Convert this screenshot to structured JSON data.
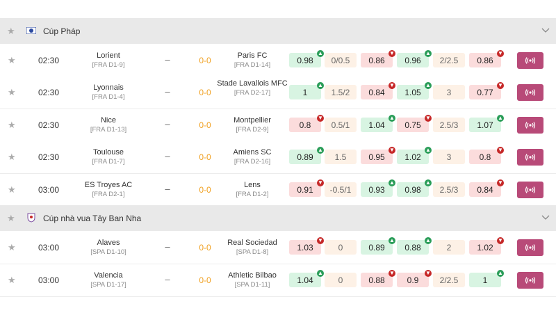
{
  "colors": {
    "up": "#d8f4e2",
    "down": "#fbdcdc",
    "handicap": "#fdf1e6",
    "score": "#f0a020",
    "live_button": "#b84a78",
    "header_bg": "#e9e9e9"
  },
  "icons": {
    "star": "star-icon",
    "chevron": "chevron-down-icon",
    "live": "live-broadcast-icon",
    "trend_up": "arrow-up-icon",
    "trend_down": "arrow-down-icon"
  },
  "leagues": [
    {
      "name": "Cúp Pháp",
      "matches": [
        {
          "time": "02:30",
          "home": "Lorient",
          "home_rank": "[FRA D1-9]",
          "score": "0-0",
          "away": "Paris FC",
          "away_rank": "[FRA D1-14]",
          "odds": [
            {
              "v": "0.98",
              "s": "up"
            },
            {
              "v": "0/0.5",
              "s": "hcp"
            },
            {
              "v": "0.86",
              "s": "down"
            },
            {
              "v": "0.96",
              "s": "up"
            },
            {
              "v": "2/2.5",
              "s": "hcp"
            },
            {
              "v": "0.86",
              "s": "down"
            }
          ]
        },
        {
          "time": "02:30",
          "home": "Lyonnais",
          "home_rank": "[FRA D1-4]",
          "score": "0-0",
          "away": "Stade Lavallois MFC",
          "away_rank": "[FRA D2-17]",
          "odds": [
            {
              "v": "1",
              "s": "up"
            },
            {
              "v": "1.5/2",
              "s": "hcp"
            },
            {
              "v": "0.84",
              "s": "down"
            },
            {
              "v": "1.05",
              "s": "up"
            },
            {
              "v": "3",
              "s": "hcp"
            },
            {
              "v": "0.77",
              "s": "down"
            }
          ]
        },
        {
          "time": "02:30",
          "home": "Nice",
          "home_rank": "[FRA D1-13]",
          "score": "0-0",
          "away": "Montpellier",
          "away_rank": "[FRA D2-9]",
          "odds": [
            {
              "v": "0.8",
              "s": "down"
            },
            {
              "v": "0.5/1",
              "s": "hcp"
            },
            {
              "v": "1.04",
              "s": "up"
            },
            {
              "v": "0.75",
              "s": "down"
            },
            {
              "v": "2.5/3",
              "s": "hcp"
            },
            {
              "v": "1.07",
              "s": "up"
            }
          ]
        },
        {
          "time": "02:30",
          "home": "Toulouse",
          "home_rank": "[FRA D1-7]",
          "score": "0-0",
          "away": "Amiens SC",
          "away_rank": "[FRA D2-16]",
          "odds": [
            {
              "v": "0.89",
              "s": "up"
            },
            {
              "v": "1.5",
              "s": "hcp"
            },
            {
              "v": "0.95",
              "s": "down"
            },
            {
              "v": "1.02",
              "s": "up"
            },
            {
              "v": "3",
              "s": "hcp"
            },
            {
              "v": "0.8",
              "s": "down"
            }
          ]
        },
        {
          "time": "03:00",
          "home": "ES Troyes AC",
          "home_rank": "[FRA D2-1]",
          "score": "0-0",
          "away": "Lens",
          "away_rank": "[FRA D1-2]",
          "odds": [
            {
              "v": "0.91",
              "s": "down"
            },
            {
              "v": "-0.5/1",
              "s": "hcp"
            },
            {
              "v": "0.93",
              "s": "up"
            },
            {
              "v": "0.98",
              "s": "up"
            },
            {
              "v": "2.5/3",
              "s": "hcp"
            },
            {
              "v": "0.84",
              "s": "down"
            }
          ]
        }
      ]
    },
    {
      "name": "Cúp nhà vua Tây Ban Nha",
      "matches": [
        {
          "time": "03:00",
          "home": "Alaves",
          "home_rank": "[SPA D1-10]",
          "score": "0-0",
          "away": "Real Sociedad",
          "away_rank": "[SPA D1-8]",
          "odds": [
            {
              "v": "1.03",
              "s": "down"
            },
            {
              "v": "0",
              "s": "hcp"
            },
            {
              "v": "0.89",
              "s": "up"
            },
            {
              "v": "0.88",
              "s": "up"
            },
            {
              "v": "2",
              "s": "hcp"
            },
            {
              "v": "1.02",
              "s": "down"
            }
          ]
        },
        {
          "time": "03:00",
          "home": "Valencia",
          "home_rank": "[SPA D1-17]",
          "score": "0-0",
          "away": "Athletic Bilbao",
          "away_rank": "[SPA D1-11]",
          "odds": [
            {
              "v": "1.04",
              "s": "up"
            },
            {
              "v": "0",
              "s": "hcp"
            },
            {
              "v": "0.88",
              "s": "down"
            },
            {
              "v": "0.9",
              "s": "down"
            },
            {
              "v": "2/2.5",
              "s": "hcp"
            },
            {
              "v": "1",
              "s": "up"
            }
          ]
        }
      ]
    }
  ]
}
